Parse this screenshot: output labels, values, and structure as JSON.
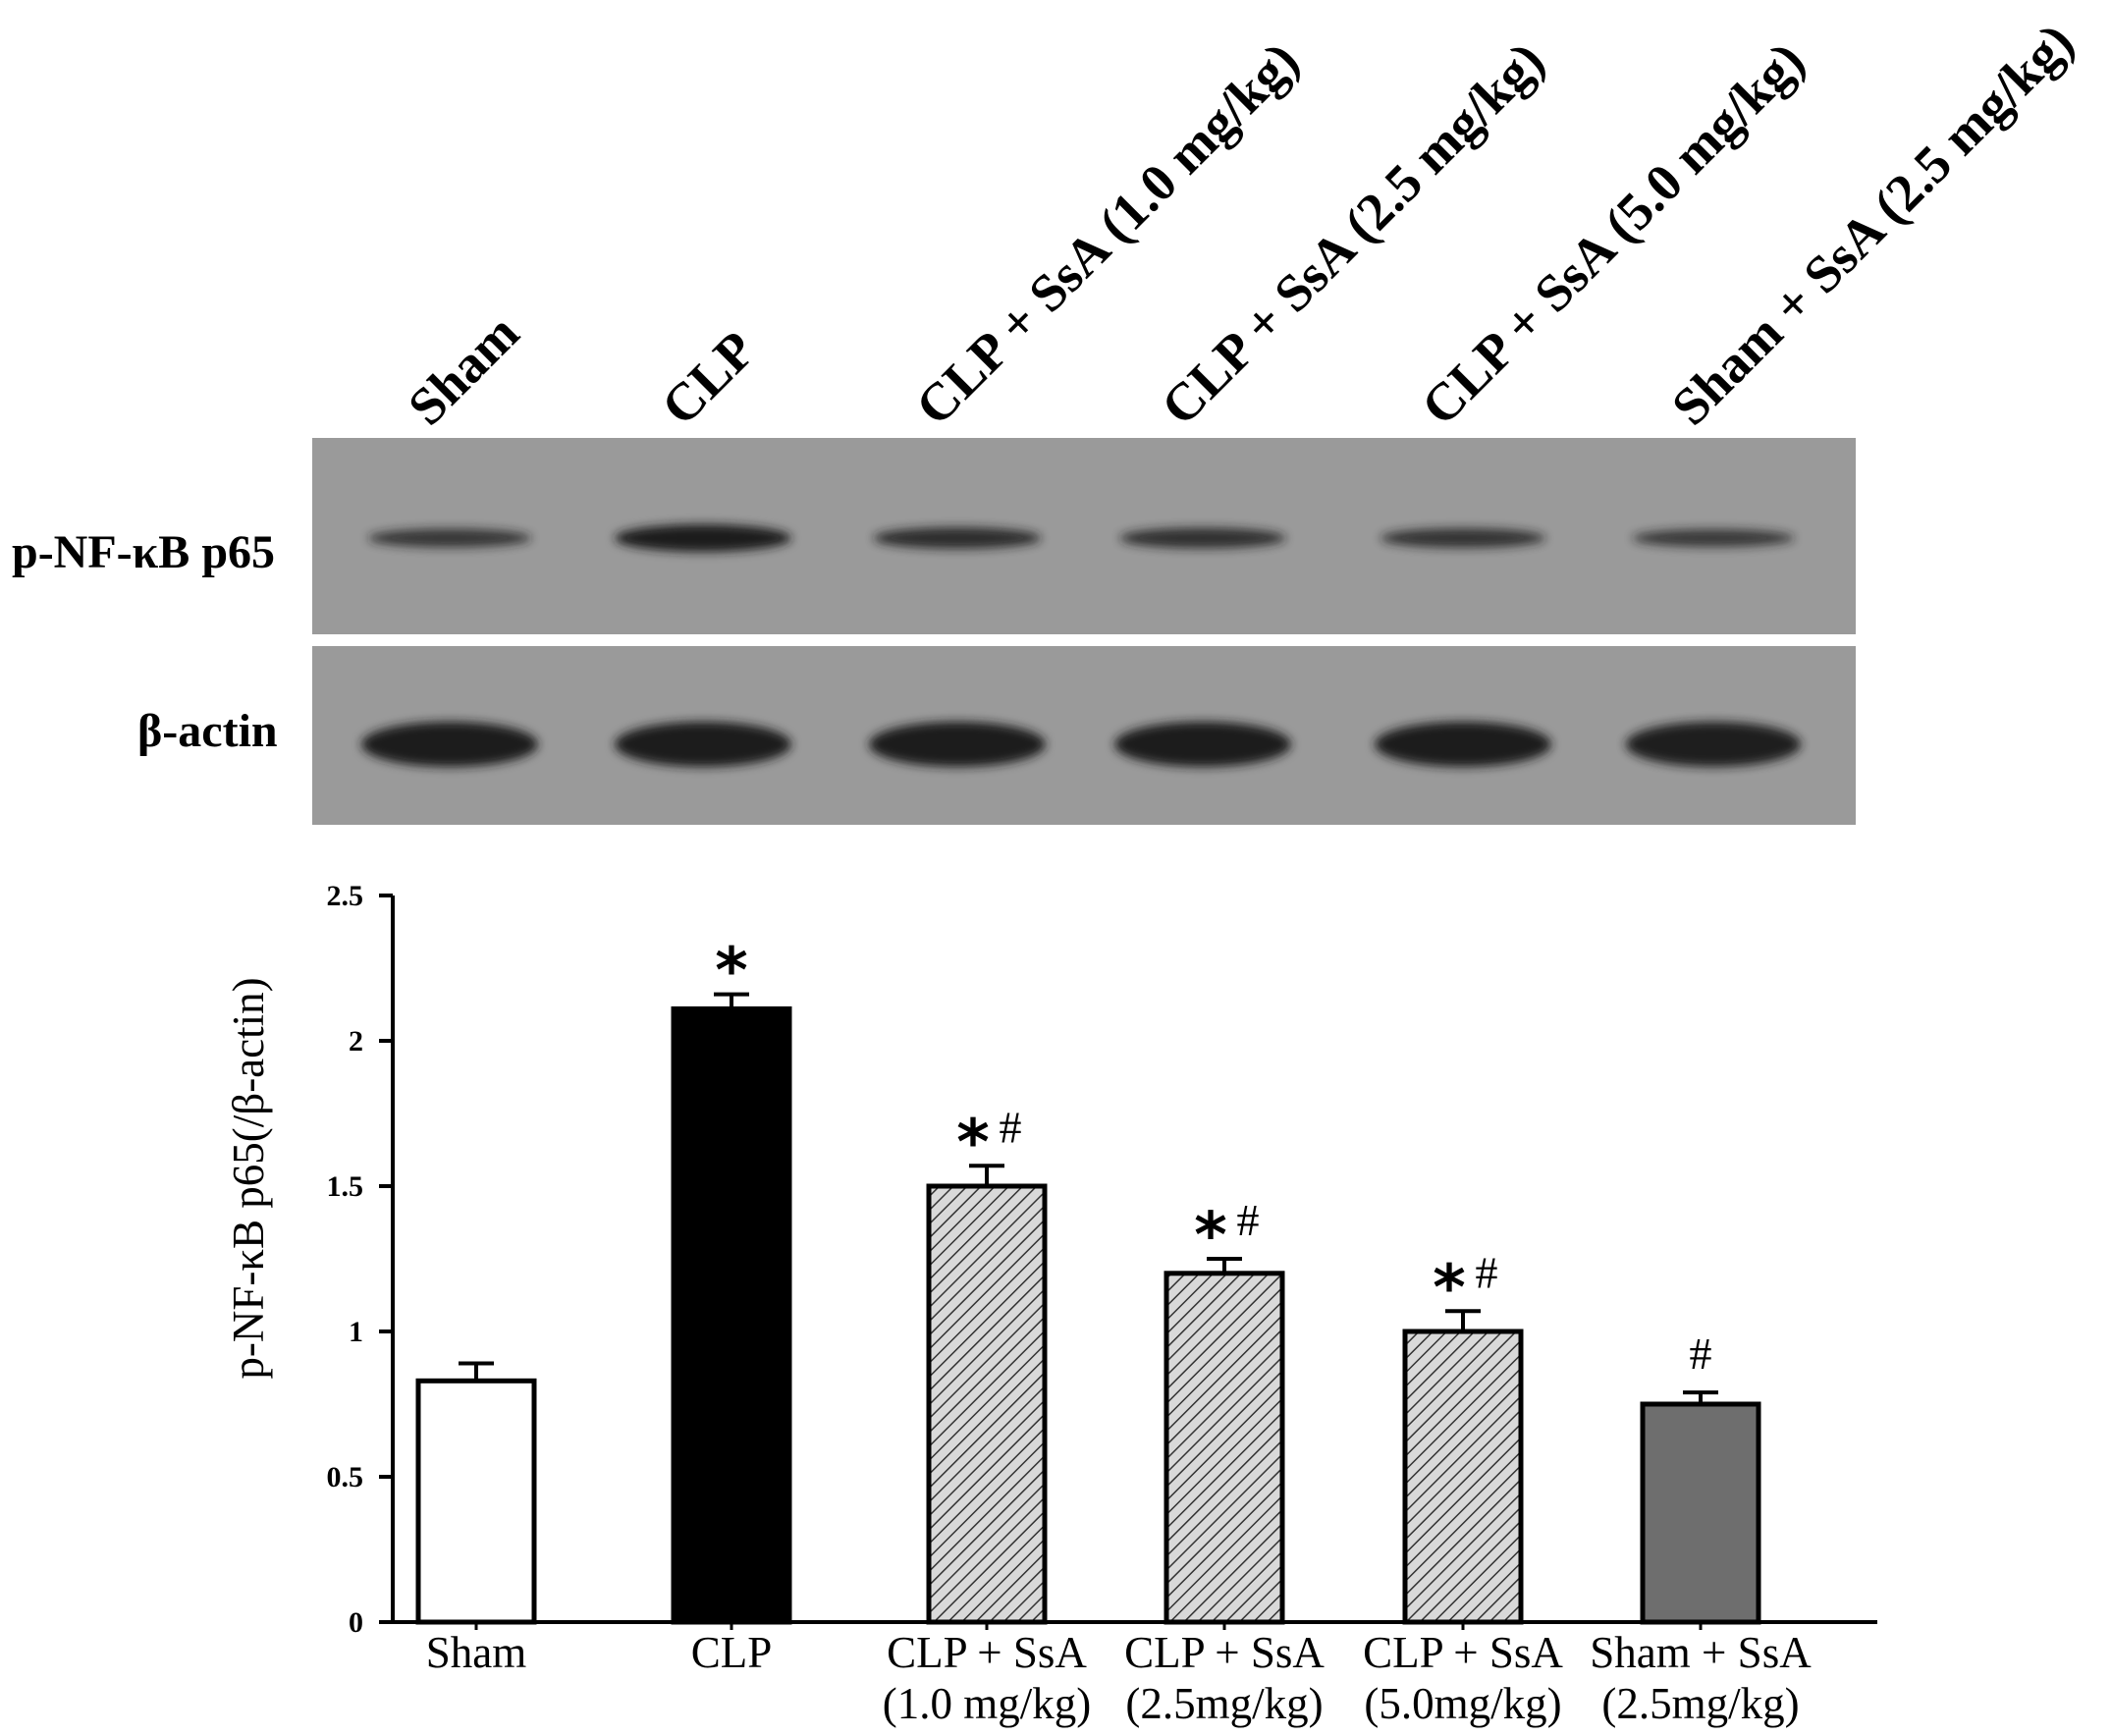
{
  "blot": {
    "lanes": [
      "Sham",
      "CLP",
      "CLP + SsA (1.0 mg/kg)",
      "CLP + SsA (2.5 mg/kg)",
      "CLP + SsA (5.0 mg/kg)",
      "Sham + SsA (2.5 mg/kg)"
    ],
    "rows": [
      {
        "label": "p-NF-κB p65",
        "band_intensity": [
          0.55,
          1.0,
          0.7,
          0.65,
          0.6,
          0.5
        ]
      },
      {
        "label": "β-actin",
        "band_intensity": [
          1.0,
          1.0,
          1.0,
          1.0,
          1.0,
          0.95
        ]
      }
    ],
    "colors": {
      "membrane": "#9a9a9a",
      "band": "#1a1a1a"
    }
  },
  "chart_data": {
    "type": "bar",
    "categories": [
      [
        "Sham"
      ],
      [
        "CLP"
      ],
      [
        "CLP + SsA",
        "(1.0 mg/kg)"
      ],
      [
        "CLP + SsA",
        "(2.5mg/kg)"
      ],
      [
        "CLP + SsA",
        "(5.0mg/kg)"
      ],
      [
        "Sham + SsA",
        "(2.5mg/kg)"
      ]
    ],
    "values": [
      0.83,
      2.11,
      1.5,
      1.2,
      1.0,
      0.75
    ],
    "errors": [
      0.06,
      0.05,
      0.07,
      0.05,
      0.07,
      0.04
    ],
    "annotations": [
      [],
      [
        "*"
      ],
      [
        "*",
        "#"
      ],
      [
        "*",
        "#"
      ],
      [
        "*",
        "#"
      ],
      [
        "#"
      ]
    ],
    "fills": [
      "white",
      "black",
      "hatch",
      "hatch",
      "hatch",
      "gray"
    ],
    "ylabel": "p-NF-κB p65(/β-actin)",
    "ylim": [
      0,
      2.5
    ],
    "yticks": [
      "0",
      "0.5",
      "1",
      "1.5",
      "2",
      "2.5"
    ],
    "grid": false,
    "colors": {
      "black": "#000000",
      "gray": "#6e6e6e",
      "hatch_bg": "#d9d9d9"
    }
  }
}
